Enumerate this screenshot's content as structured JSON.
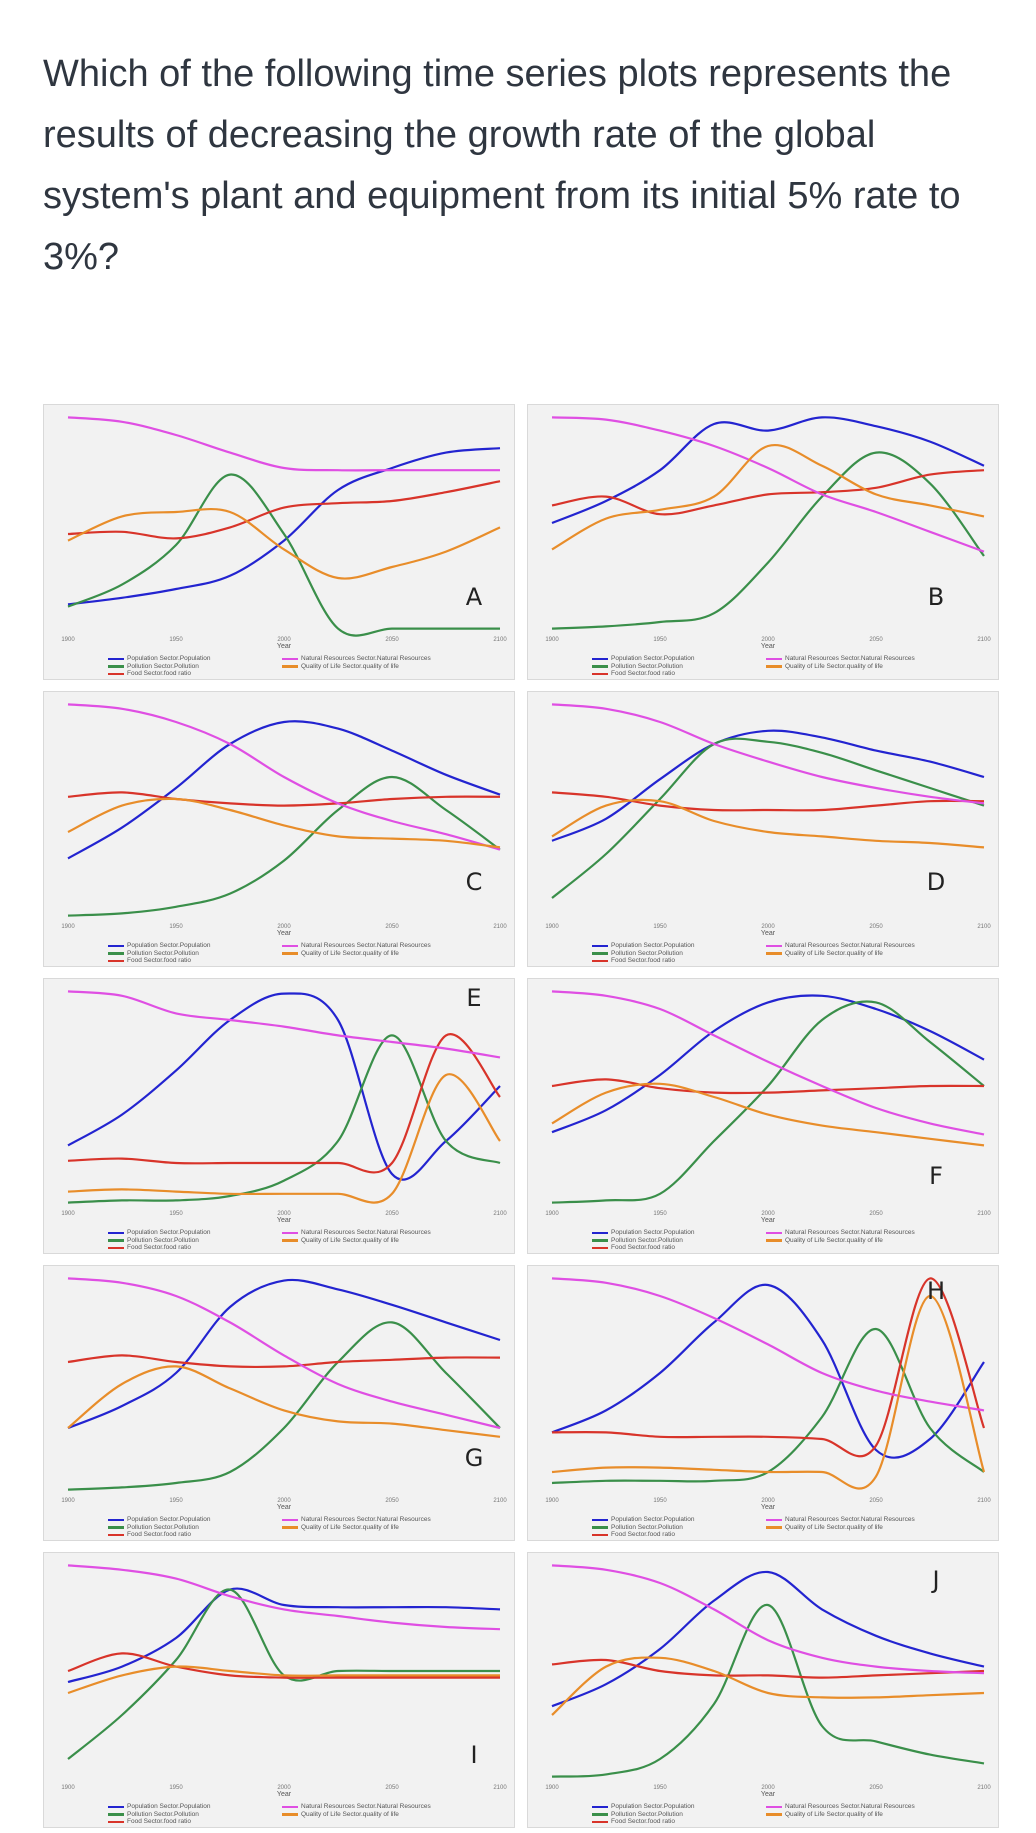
{
  "question": "Which of the following time series plots represents the results of decreasing the growth rate of the global system's plant and equipment from its initial 5% rate to 3%?",
  "colors": {
    "population": "#2324d0",
    "pollution": "#3a8f4a",
    "food": "#d8342a",
    "natural_resources": "#df4fe3",
    "quality_of_life": "#e88d2a"
  },
  "legend": {
    "population": "Population Sector.Population",
    "pollution": "Pollution Sector.Pollution",
    "food": "Food Sector.food ratio",
    "natural_resources": "Natural Resources Sector.Natural Resources",
    "quality_of_life": "Quality of Life Sector.quality of life"
  },
  "xlabel": "Year",
  "xticks": [
    "1900",
    "1950",
    "2000",
    "2050",
    "2100"
  ],
  "chart_data": [
    {
      "type": "line",
      "label": "A",
      "x": [
        1900,
        1925,
        1950,
        1975,
        2000,
        2025,
        2050,
        2075,
        2100
      ],
      "xlim": [
        1900,
        2100
      ],
      "ylim": [
        0,
        1
      ],
      "series": [
        {
          "color": "#2324d0",
          "values": [
            0.13,
            0.16,
            0.2,
            0.26,
            0.42,
            0.65,
            0.75,
            0.82,
            0.84
          ]
        },
        {
          "color": "#3a8f4a",
          "values": [
            0.12,
            0.22,
            0.4,
            0.72,
            0.45,
            0.02,
            0.02,
            0.02,
            0.02
          ]
        },
        {
          "color": "#d8342a",
          "values": [
            0.45,
            0.46,
            0.43,
            0.48,
            0.57,
            0.59,
            0.6,
            0.64,
            0.69
          ]
        },
        {
          "color": "#df4fe3",
          "values": [
            0.98,
            0.96,
            0.9,
            0.82,
            0.75,
            0.74,
            0.74,
            0.74,
            0.74
          ]
        },
        {
          "color": "#e88d2a",
          "values": [
            0.42,
            0.53,
            0.55,
            0.55,
            0.38,
            0.25,
            0.3,
            0.37,
            0.48
          ]
        }
      ]
    },
    {
      "type": "line",
      "label": "B",
      "x": [
        1900,
        1925,
        1950,
        1975,
        2000,
        2025,
        2050,
        2075,
        2100
      ],
      "xlim": [
        1900,
        2100
      ],
      "ylim": [
        0,
        1
      ],
      "series": [
        {
          "color": "#2324d0",
          "values": [
            0.5,
            0.6,
            0.74,
            0.95,
            0.92,
            0.98,
            0.94,
            0.87,
            0.76
          ]
        },
        {
          "color": "#3a8f4a",
          "values": [
            0.02,
            0.03,
            0.05,
            0.09,
            0.32,
            0.62,
            0.82,
            0.68,
            0.35
          ]
        },
        {
          "color": "#d8342a",
          "values": [
            0.58,
            0.62,
            0.54,
            0.58,
            0.63,
            0.64,
            0.66,
            0.72,
            0.74
          ]
        },
        {
          "color": "#df4fe3",
          "values": [
            0.98,
            0.97,
            0.92,
            0.85,
            0.75,
            0.63,
            0.55,
            0.46,
            0.37
          ]
        },
        {
          "color": "#e88d2a",
          "values": [
            0.38,
            0.52,
            0.56,
            0.62,
            0.85,
            0.76,
            0.63,
            0.58,
            0.53
          ]
        }
      ]
    },
    {
      "type": "line",
      "label": "C",
      "x": [
        1900,
        1925,
        1950,
        1975,
        2000,
        2025,
        2050,
        2075,
        2100
      ],
      "xlim": [
        1900,
        2100
      ],
      "ylim": [
        0,
        1
      ],
      "series": [
        {
          "color": "#2324d0",
          "values": [
            0.28,
            0.42,
            0.6,
            0.8,
            0.9,
            0.87,
            0.77,
            0.66,
            0.57
          ]
        },
        {
          "color": "#3a8f4a",
          "values": [
            0.02,
            0.03,
            0.06,
            0.12,
            0.27,
            0.5,
            0.65,
            0.5,
            0.32
          ]
        },
        {
          "color": "#d8342a",
          "values": [
            0.56,
            0.58,
            0.55,
            0.53,
            0.52,
            0.53,
            0.55,
            0.56,
            0.56
          ]
        },
        {
          "color": "#df4fe3",
          "values": [
            0.98,
            0.96,
            0.9,
            0.8,
            0.65,
            0.53,
            0.45,
            0.39,
            0.32
          ]
        },
        {
          "color": "#e88d2a",
          "values": [
            0.4,
            0.52,
            0.55,
            0.5,
            0.43,
            0.38,
            0.37,
            0.36,
            0.33
          ]
        }
      ]
    },
    {
      "type": "line",
      "label": "D",
      "x": [
        1900,
        1925,
        1950,
        1975,
        2000,
        2025,
        2050,
        2075,
        2100
      ],
      "xlim": [
        1900,
        2100
      ],
      "ylim": [
        0,
        1
      ],
      "series": [
        {
          "color": "#2324d0",
          "values": [
            0.36,
            0.46,
            0.64,
            0.8,
            0.86,
            0.83,
            0.77,
            0.72,
            0.65
          ]
        },
        {
          "color": "#3a8f4a",
          "values": [
            0.1,
            0.3,
            0.55,
            0.8,
            0.81,
            0.76,
            0.68,
            0.6,
            0.52
          ]
        },
        {
          "color": "#d8342a",
          "values": [
            0.58,
            0.56,
            0.52,
            0.5,
            0.5,
            0.5,
            0.52,
            0.54,
            0.54
          ]
        },
        {
          "color": "#df4fe3",
          "values": [
            0.98,
            0.96,
            0.9,
            0.8,
            0.72,
            0.65,
            0.6,
            0.56,
            0.53
          ]
        },
        {
          "color": "#e88d2a",
          "values": [
            0.38,
            0.52,
            0.54,
            0.45,
            0.4,
            0.38,
            0.36,
            0.35,
            0.33
          ]
        }
      ]
    },
    {
      "type": "line",
      "label": "E",
      "x": [
        1900,
        1925,
        1950,
        1975,
        2000,
        2025,
        2050,
        2075,
        2100
      ],
      "xlim": [
        1900,
        2100
      ],
      "ylim": [
        0,
        1
      ],
      "series": [
        {
          "color": "#2324d0",
          "values": [
            0.28,
            0.42,
            0.62,
            0.85,
            0.97,
            0.85,
            0.15,
            0.3,
            0.55
          ]
        },
        {
          "color": "#3a8f4a",
          "values": [
            0.02,
            0.03,
            0.03,
            0.05,
            0.12,
            0.3,
            0.78,
            0.3,
            0.2
          ]
        },
        {
          "color": "#d8342a",
          "values": [
            0.21,
            0.22,
            0.2,
            0.2,
            0.2,
            0.2,
            0.2,
            0.78,
            0.5
          ]
        },
        {
          "color": "#df4fe3",
          "values": [
            0.98,
            0.96,
            0.88,
            0.85,
            0.82,
            0.78,
            0.75,
            0.72,
            0.68
          ]
        },
        {
          "color": "#e88d2a",
          "values": [
            0.07,
            0.08,
            0.07,
            0.06,
            0.06,
            0.06,
            0.06,
            0.6,
            0.3
          ]
        }
      ]
    },
    {
      "type": "line",
      "label": "F",
      "x": [
        1900,
        1925,
        1950,
        1975,
        2000,
        2025,
        2050,
        2075,
        2100
      ],
      "xlim": [
        1900,
        2100
      ],
      "ylim": [
        0,
        1
      ],
      "series": [
        {
          "color": "#2324d0",
          "values": [
            0.34,
            0.44,
            0.6,
            0.8,
            0.93,
            0.96,
            0.9,
            0.8,
            0.67
          ]
        },
        {
          "color": "#3a8f4a",
          "values": [
            0.02,
            0.03,
            0.06,
            0.3,
            0.55,
            0.85,
            0.93,
            0.75,
            0.55
          ]
        },
        {
          "color": "#d8342a",
          "values": [
            0.55,
            0.58,
            0.54,
            0.52,
            0.52,
            0.53,
            0.54,
            0.55,
            0.55
          ]
        },
        {
          "color": "#df4fe3",
          "values": [
            0.98,
            0.96,
            0.9,
            0.78,
            0.66,
            0.55,
            0.45,
            0.38,
            0.33
          ]
        },
        {
          "color": "#e88d2a",
          "values": [
            0.38,
            0.52,
            0.56,
            0.5,
            0.42,
            0.37,
            0.34,
            0.31,
            0.28
          ]
        }
      ]
    },
    {
      "type": "line",
      "label": "G",
      "x": [
        1900,
        1925,
        1950,
        1975,
        2000,
        2025,
        2050,
        2075,
        2100
      ],
      "xlim": [
        1900,
        2100
      ],
      "ylim": [
        0,
        1
      ],
      "series": [
        {
          "color": "#2324d0",
          "values": [
            0.3,
            0.4,
            0.55,
            0.85,
            0.97,
            0.93,
            0.86,
            0.78,
            0.7
          ]
        },
        {
          "color": "#3a8f4a",
          "values": [
            0.02,
            0.03,
            0.05,
            0.1,
            0.3,
            0.6,
            0.78,
            0.55,
            0.3
          ]
        },
        {
          "color": "#d8342a",
          "values": [
            0.6,
            0.63,
            0.6,
            0.58,
            0.58,
            0.6,
            0.61,
            0.62,
            0.62
          ]
        },
        {
          "color": "#df4fe3",
          "values": [
            0.98,
            0.96,
            0.9,
            0.78,
            0.63,
            0.5,
            0.42,
            0.36,
            0.3
          ]
        },
        {
          "color": "#e88d2a",
          "values": [
            0.3,
            0.5,
            0.58,
            0.48,
            0.38,
            0.33,
            0.32,
            0.29,
            0.26
          ]
        }
      ]
    },
    {
      "type": "line",
      "label": "H",
      "x": [
        1900,
        1925,
        1950,
        1975,
        2000,
        2025,
        2050,
        2075,
        2100
      ],
      "xlim": [
        1900,
        2100
      ],
      "ylim": [
        0,
        1
      ],
      "series": [
        {
          "color": "#2324d0",
          "values": [
            0.28,
            0.38,
            0.55,
            0.78,
            0.95,
            0.7,
            0.2,
            0.25,
            0.6
          ]
        },
        {
          "color": "#3a8f4a",
          "values": [
            0.05,
            0.06,
            0.06,
            0.06,
            0.1,
            0.35,
            0.75,
            0.3,
            0.1
          ]
        },
        {
          "color": "#d8342a",
          "values": [
            0.28,
            0.28,
            0.26,
            0.26,
            0.26,
            0.25,
            0.22,
            0.98,
            0.3
          ]
        },
        {
          "color": "#df4fe3",
          "values": [
            0.98,
            0.96,
            0.9,
            0.8,
            0.68,
            0.55,
            0.47,
            0.42,
            0.38
          ]
        },
        {
          "color": "#e88d2a",
          "values": [
            0.1,
            0.12,
            0.12,
            0.11,
            0.1,
            0.1,
            0.08,
            0.9,
            0.1
          ]
        }
      ]
    },
    {
      "type": "line",
      "label": "I",
      "x": [
        1900,
        1925,
        1950,
        1975,
        2000,
        2025,
        2050,
        2075,
        2100
      ],
      "xlim": [
        1900,
        2100
      ],
      "ylim": [
        0,
        1
      ],
      "series": [
        {
          "color": "#2324d0",
          "values": [
            0.45,
            0.52,
            0.65,
            0.87,
            0.8,
            0.79,
            0.79,
            0.79,
            0.78
          ]
        },
        {
          "color": "#3a8f4a",
          "values": [
            0.1,
            0.3,
            0.55,
            0.87,
            0.48,
            0.5,
            0.5,
            0.5,
            0.5
          ]
        },
        {
          "color": "#d8342a",
          "values": [
            0.5,
            0.58,
            0.52,
            0.48,
            0.47,
            0.47,
            0.47,
            0.47,
            0.47
          ]
        },
        {
          "color": "#df4fe3",
          "values": [
            0.98,
            0.96,
            0.92,
            0.84,
            0.78,
            0.75,
            0.72,
            0.7,
            0.69
          ]
        },
        {
          "color": "#e88d2a",
          "values": [
            0.4,
            0.48,
            0.52,
            0.5,
            0.48,
            0.48,
            0.48,
            0.48,
            0.48
          ]
        }
      ]
    },
    {
      "type": "line",
      "label": "J",
      "x": [
        1900,
        1925,
        1950,
        1975,
        2000,
        2025,
        2050,
        2075,
        2100
      ],
      "xlim": [
        1900,
        2100
      ],
      "ylim": [
        0,
        1
      ],
      "series": [
        {
          "color": "#2324d0",
          "values": [
            0.34,
            0.44,
            0.6,
            0.82,
            0.95,
            0.78,
            0.66,
            0.58,
            0.52
          ]
        },
        {
          "color": "#3a8f4a",
          "values": [
            0.02,
            0.03,
            0.1,
            0.35,
            0.8,
            0.25,
            0.18,
            0.12,
            0.08
          ]
        },
        {
          "color": "#d8342a",
          "values": [
            0.53,
            0.55,
            0.5,
            0.48,
            0.48,
            0.47,
            0.48,
            0.49,
            0.5
          ]
        },
        {
          "color": "#df4fe3",
          "values": [
            0.98,
            0.96,
            0.9,
            0.78,
            0.64,
            0.56,
            0.52,
            0.5,
            0.49
          ]
        },
        {
          "color": "#e88d2a",
          "values": [
            0.3,
            0.52,
            0.56,
            0.5,
            0.4,
            0.38,
            0.38,
            0.39,
            0.4
          ]
        }
      ]
    }
  ]
}
